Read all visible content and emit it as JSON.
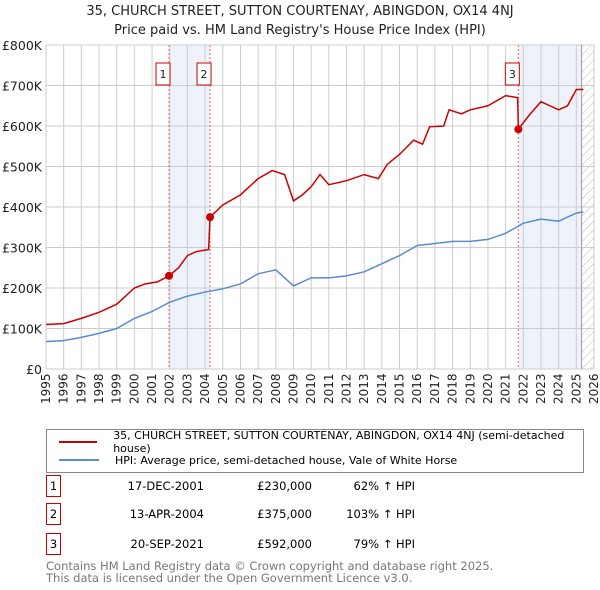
{
  "title": "35, CHURCH STREET, SUTTON COURTENAY, ABINGDON, OX14 4NJ",
  "subtitle": "Price paid vs. HM Land Registry's House Price Index (HPI)",
  "chart_data": {
    "type": "line",
    "xlim": [
      1995,
      2026
    ],
    "ylim": [
      0,
      800000
    ],
    "x_ticks": [
      1995,
      1996,
      1997,
      1998,
      1999,
      2000,
      2001,
      2002,
      2003,
      2004,
      2005,
      2006,
      2007,
      2008,
      2009,
      2010,
      2011,
      2012,
      2013,
      2014,
      2015,
      2016,
      2017,
      2018,
      2019,
      2020,
      2021,
      2022,
      2023,
      2024,
      2025,
      2026
    ],
    "y_ticks": [
      {
        "v": 0,
        "l": "£0"
      },
      {
        "v": 100000,
        "l": "£100K"
      },
      {
        "v": 200000,
        "l": "£200K"
      },
      {
        "v": 300000,
        "l": "£300K"
      },
      {
        "v": 400000,
        "l": "£400K"
      },
      {
        "v": 500000,
        "l": "£500K"
      },
      {
        "v": 600000,
        "l": "£600K"
      },
      {
        "v": 700000,
        "l": "£700K"
      },
      {
        "v": 800000,
        "l": "£800K"
      }
    ],
    "grid": true,
    "series": [
      {
        "name": "35, CHURCH STREET, SUTTON COURTENAY, ABINGDON, OX14 4NJ (semi-detached house)",
        "color": "#cc0000",
        "x": [
          1995,
          1996,
          1997,
          1998,
          1999,
          2000,
          2000.6,
          2001.3,
          2001.96,
          2002.5,
          2003,
          2003.5,
          2004.2,
          2004.28,
          2005,
          2006,
          2007,
          2007.8,
          2008.5,
          2009,
          2009.5,
          2010,
          2010.5,
          2011,
          2012,
          2013,
          2013.8,
          2014.3,
          2015,
          2015.8,
          2016.3,
          2016.7,
          2017.5,
          2017.8,
          2018.5,
          2019,
          2020,
          2021,
          2021.68,
          2021.72,
          2022.3,
          2023,
          2023.5,
          2024,
          2024.5,
          2025,
          2025.4
        ],
        "values": [
          110000,
          112000,
          125000,
          140000,
          160000,
          200000,
          210000,
          215000,
          230000,
          250000,
          280000,
          290000,
          295000,
          375000,
          405000,
          430000,
          470000,
          490000,
          480000,
          415000,
          430000,
          450000,
          480000,
          455000,
          465000,
          480000,
          470000,
          505000,
          530000,
          565000,
          555000,
          598000,
          600000,
          640000,
          630000,
          640000,
          650000,
          675000,
          670000,
          592000,
          625000,
          660000,
          650000,
          640000,
          650000,
          690000,
          690000
        ]
      },
      {
        "name": "HPI: Average price, semi-detached house, Vale of White Horse",
        "color": "#5b8bd0",
        "x": [
          1995,
          1996,
          1997,
          1998,
          1999,
          2000,
          2001,
          2002,
          2003,
          2004,
          2005,
          2006,
          2007,
          2008,
          2009,
          2010,
          2011,
          2012,
          2013,
          2014,
          2015,
          2016,
          2017,
          2018,
          2019,
          2020,
          2021,
          2022,
          2023,
          2024,
          2025,
          2025.4
        ],
        "values": [
          68000,
          70000,
          78000,
          88000,
          100000,
          125000,
          142000,
          165000,
          180000,
          190000,
          198000,
          210000,
          235000,
          245000,
          205000,
          225000,
          225000,
          230000,
          240000,
          260000,
          280000,
          305000,
          310000,
          315000,
          315000,
          320000,
          335000,
          360000,
          370000,
          365000,
          385000,
          388000
        ]
      }
    ],
    "sales": [
      {
        "n": "1",
        "x": 2001.96,
        "value": 230000,
        "date": "17-DEC-2001",
        "price": "£230,000",
        "hpi": "62% ↑ HPI"
      },
      {
        "n": "2",
        "x": 2004.28,
        "value": 375000,
        "date": "13-APR-2004",
        "price": "£375,000",
        "hpi": "103% ↑ HPI"
      },
      {
        "n": "3",
        "x": 2021.72,
        "value": 592000,
        "date": "20-SEP-2021",
        "price": "£592,000",
        "hpi": "79% ↑ HPI"
      }
    ],
    "shaded": [
      [
        2001.96,
        2004.28
      ],
      [
        2021.72,
        2025.3
      ]
    ],
    "hatch_from": 2025.3
  },
  "footer1": "Contains HM Land Registry data © Crown copyright and database right 2025.",
  "footer2": "This data is licensed under the Open Government Licence v3.0."
}
